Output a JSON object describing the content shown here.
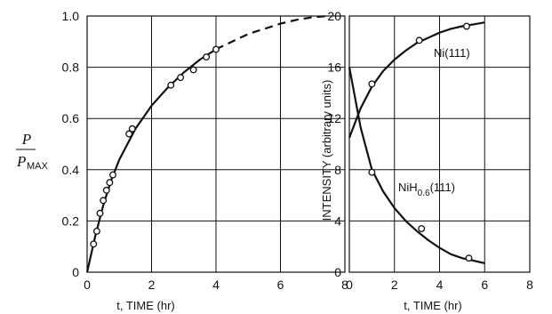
{
  "chart_data": [
    {
      "type": "scatter",
      "xlabel": "t, TIME (hr)",
      "ylabel": {
        "num": "P",
        "den": "P",
        "den_sub": "MAX"
      },
      "xlim": [
        0,
        8
      ],
      "ylim": [
        0,
        1.0
      ],
      "x_ticks": [
        "0",
        "2",
        "4",
        "6",
        "8"
      ],
      "y_ticks": [
        "0",
        "0.2",
        "0.4",
        "0.6",
        "0.8",
        "1.0"
      ],
      "grid": true,
      "series": [
        {
          "points_x": [
            0.2,
            0.3,
            0.4,
            0.5,
            0.6,
            0.7,
            0.8,
            1.3,
            1.4,
            2.6,
            2.9,
            3.3,
            3.7,
            4.0
          ],
          "points_y": [
            0.11,
            0.16,
            0.23,
            0.28,
            0.32,
            0.35,
            0.38,
            0.54,
            0.56,
            0.73,
            0.76,
            0.79,
            0.84,
            0.87
          ],
          "curve_x": [
            0,
            0.25,
            0.5,
            0.75,
            1,
            1.5,
            2,
            2.5,
            3,
            3.5,
            4,
            4.5,
            5,
            5.5,
            6,
            6.5,
            7,
            7.5
          ],
          "curve_y": [
            0,
            0.14,
            0.26,
            0.36,
            0.44,
            0.56,
            0.65,
            0.72,
            0.78,
            0.83,
            0.87,
            0.9,
            0.93,
            0.95,
            0.97,
            0.985,
            0.995,
            1.0
          ],
          "dashed_from_x": 4.0
        }
      ]
    },
    {
      "type": "scatter",
      "xlabel": "t, TIME (hr)",
      "ylabel": "INTENSITY (arbitrary units)",
      "xlim": [
        0,
        8
      ],
      "ylim": [
        0,
        20
      ],
      "x_ticks": [
        "0",
        "2",
        "4",
        "6",
        "8"
      ],
      "y_ticks": [
        "0",
        "4",
        "8",
        "12",
        "16",
        "20"
      ],
      "grid": true,
      "series": [
        {
          "annotation": "Ni(111)",
          "points_x": [
            1.0,
            3.1,
            5.2
          ],
          "points_y": [
            14.7,
            18.1,
            19.2
          ],
          "curve_x": [
            0,
            0.5,
            1,
            1.5,
            2,
            2.5,
            3,
            3.5,
            4,
            4.5,
            5,
            5.5,
            6
          ],
          "curve_y": [
            10.5,
            12.8,
            14.5,
            15.7,
            16.6,
            17.3,
            17.9,
            18.3,
            18.7,
            19.0,
            19.2,
            19.35,
            19.5
          ]
        },
        {
          "annotation_main": "NiH",
          "annotation_sub": "0.6",
          "annotation_tail": "(111)",
          "points_x": [
            1.0,
            3.2,
            5.3
          ],
          "points_y": [
            7.8,
            3.4,
            1.1
          ],
          "curve_x": [
            0,
            0.5,
            1,
            1.5,
            2,
            2.5,
            3,
            3.5,
            4,
            4.5,
            5,
            5.5,
            6
          ],
          "curve_y": [
            16.0,
            11.3,
            8.0,
            6.3,
            5.0,
            4.0,
            3.2,
            2.5,
            1.9,
            1.4,
            1.1,
            0.9,
            0.7
          ]
        }
      ]
    }
  ]
}
